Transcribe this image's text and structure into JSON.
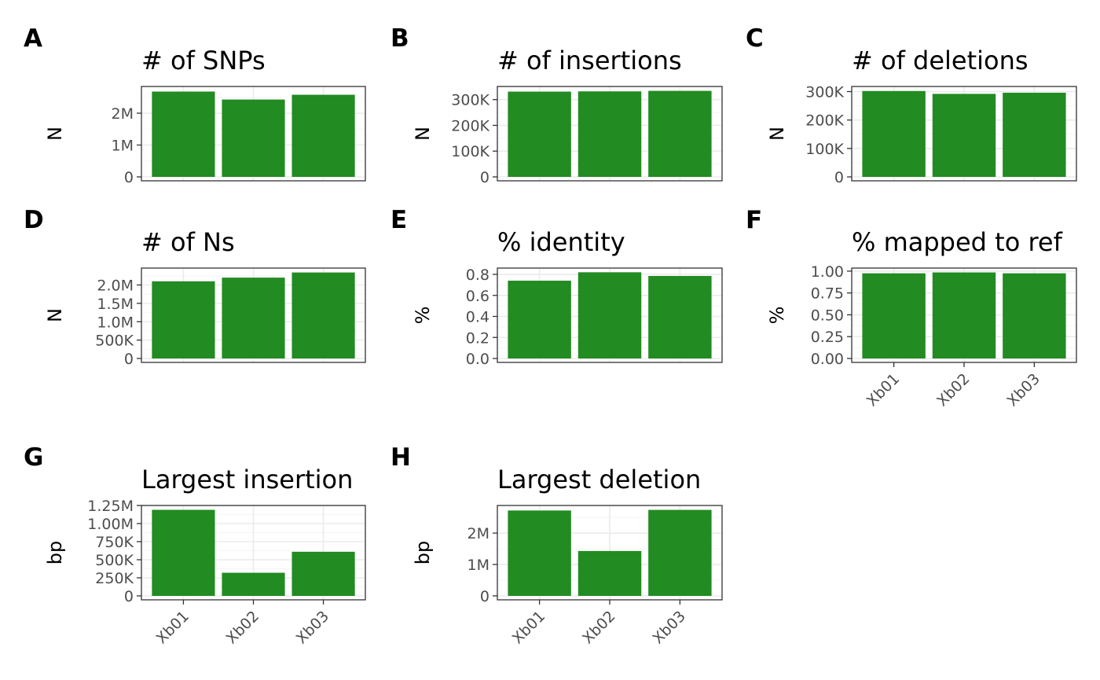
{
  "colors": {
    "bar": "#228b22",
    "panel_border": "#333333",
    "grid_major": "#ebebeb",
    "grid_minor": "#f5f5f5",
    "tick_text": "#4d4d4d"
  },
  "chart_data": [
    {
      "type": "bar",
      "tag": "A",
      "title": "# of SNPs",
      "xlabel": "",
      "ylabel": "N",
      "categories": [
        "Xb01",
        "Xb02",
        "Xb03"
      ],
      "values": [
        2680000,
        2430000,
        2580000
      ],
      "ylim": [
        0,
        2840000
      ],
      "yticks": [
        0,
        1000000,
        2000000
      ],
      "yticklabels": [
        "0",
        "1M",
        "2M"
      ],
      "show_xticklabels": false,
      "grid": true
    },
    {
      "type": "bar",
      "tag": "B",
      "title": "# of insertions",
      "xlabel": "",
      "ylabel": "N",
      "categories": [
        "Xb01",
        "Xb02",
        "Xb03"
      ],
      "values": [
        331000,
        332000,
        334000
      ],
      "ylim": [
        0,
        351000
      ],
      "yticks": [
        0,
        100000,
        200000,
        300000
      ],
      "yticklabels": [
        "0",
        "100K",
        "200K",
        "300K"
      ],
      "show_xticklabels": false,
      "grid": true
    },
    {
      "type": "bar",
      "tag": "C",
      "title": "# of deletions",
      "xlabel": "",
      "ylabel": "N",
      "categories": [
        "Xb01",
        "Xb02",
        "Xb03"
      ],
      "values": [
        302000,
        292000,
        296000
      ],
      "ylim": [
        0,
        318000
      ],
      "yticks": [
        0,
        100000,
        200000,
        300000
      ],
      "yticklabels": [
        "0",
        "100K",
        "200K",
        "300K"
      ],
      "show_xticklabels": false,
      "grid": true
    },
    {
      "type": "bar",
      "tag": "D",
      "title": "# of Ns",
      "xlabel": "",
      "ylabel": "N",
      "categories": [
        "Xb01",
        "Xb02",
        "Xb03"
      ],
      "values": [
        2100000,
        2200000,
        2340000
      ],
      "ylim": [
        0,
        2460000
      ],
      "yticks": [
        0,
        500000,
        1000000,
        1500000,
        2000000
      ],
      "yticklabels": [
        "0",
        "500K",
        "1.0M",
        "1.5M",
        "2.0M"
      ],
      "show_xticklabels": false,
      "grid": true
    },
    {
      "type": "bar",
      "tag": "E",
      "title": "% identity",
      "xlabel": "",
      "ylabel": "%",
      "categories": [
        "Xb01",
        "Xb02",
        "Xb03"
      ],
      "values": [
        0.74,
        0.82,
        0.785
      ],
      "ylim": [
        0,
        0.86
      ],
      "yticks": [
        0,
        0.2,
        0.4,
        0.6,
        0.8
      ],
      "yticklabels": [
        "0.0",
        "0.2",
        "0.4",
        "0.6",
        "0.8"
      ],
      "show_xticklabels": false,
      "grid": true
    },
    {
      "type": "bar",
      "tag": "F",
      "title": "% mapped to ref",
      "xlabel": "",
      "ylabel": "%",
      "categories": [
        "Xb01",
        "Xb02",
        "Xb03"
      ],
      "values": [
        0.975,
        0.985,
        0.975
      ],
      "ylim": [
        0,
        1.035
      ],
      "yticks": [
        0,
        0.25,
        0.5,
        0.75,
        1.0
      ],
      "yticklabels": [
        "0.00",
        "0.25",
        "0.50",
        "0.75",
        "1.00"
      ],
      "show_xticklabels": true,
      "grid": true
    },
    {
      "type": "bar",
      "tag": "G",
      "title": "Largest insertion",
      "xlabel": "",
      "ylabel": "bp",
      "categories": [
        "Xb01",
        "Xb02",
        "Xb03"
      ],
      "values": [
        1190000,
        320000,
        610000
      ],
      "ylim": [
        0,
        1250000
      ],
      "yticks": [
        0,
        250000,
        500000,
        750000,
        1000000,
        1250000
      ],
      "yticklabels": [
        "0",
        "250K",
        "500K",
        "750K",
        "1.00M",
        "1.25M"
      ],
      "show_xticklabels": true,
      "grid": true
    },
    {
      "type": "bar",
      "tag": "H",
      "title": "Largest deletion",
      "xlabel": "",
      "ylabel": "bp",
      "categories": [
        "Xb01",
        "Xb02",
        "Xb03"
      ],
      "values": [
        2720000,
        1430000,
        2740000
      ],
      "ylim": [
        0,
        2880000
      ],
      "yticks": [
        0,
        1000000,
        2000000
      ],
      "yticklabels": [
        "0",
        "1M",
        "2M"
      ],
      "show_xticklabels": true,
      "grid": true
    }
  ]
}
